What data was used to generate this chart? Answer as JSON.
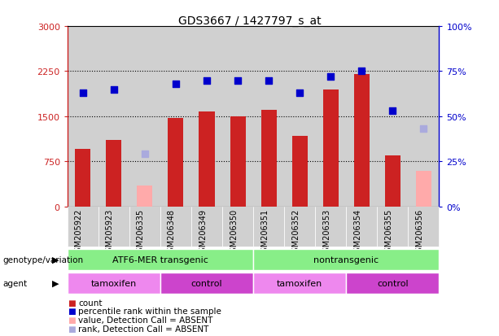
{
  "title": "GDS3667 / 1427797_s_at",
  "samples": [
    "GSM205922",
    "GSM205923",
    "GSM206335",
    "GSM206348",
    "GSM206349",
    "GSM206350",
    "GSM206351",
    "GSM206352",
    "GSM206353",
    "GSM206354",
    "GSM206355",
    "GSM206356"
  ],
  "count_values": [
    950,
    1100,
    null,
    1470,
    1580,
    1500,
    1600,
    1170,
    1950,
    2200,
    850,
    null
  ],
  "absent_count_values": [
    null,
    null,
    350,
    null,
    null,
    null,
    null,
    null,
    null,
    null,
    null,
    590
  ],
  "percentile_values": [
    63,
    65,
    null,
    68,
    70,
    70,
    70,
    63,
    72,
    75,
    53,
    null
  ],
  "absent_percentile_values": [
    null,
    null,
    29,
    null,
    null,
    null,
    null,
    null,
    null,
    null,
    null,
    43
  ],
  "ylim_left": [
    0,
    3000
  ],
  "ylim_right": [
    0,
    100
  ],
  "yticks_left": [
    0,
    750,
    1500,
    2250,
    3000
  ],
  "yticks_right": [
    0,
    25,
    50,
    75,
    100
  ],
  "ytick_labels_left": [
    "0",
    "750",
    "1500",
    "2250",
    "3000"
  ],
  "ytick_labels_right": [
    "0%",
    "25%",
    "50%",
    "75%",
    "100%"
  ],
  "bar_color_present": "#cc2222",
  "bar_color_absent": "#ffaaaa",
  "dot_color_present": "#0000cc",
  "dot_color_absent": "#aaaadd",
  "left_axis_color": "#cc2222",
  "right_axis_color": "#0000cc",
  "grid_color": "#000000",
  "background_plot": "#ffffff",
  "background_sample": "#d0d0d0",
  "groups": [
    {
      "label": "ATF6-MER transgenic",
      "color": "#88ee88",
      "start": 0,
      "end": 6
    },
    {
      "label": "nontransgenic",
      "color": "#88ee88",
      "start": 6,
      "end": 12
    }
  ],
  "agents": [
    {
      "label": "tamoxifen",
      "color": "#ee88ee",
      "start": 0,
      "end": 3
    },
    {
      "label": "control",
      "color": "#cc44cc",
      "start": 3,
      "end": 6
    },
    {
      "label": "tamoxifen",
      "color": "#ee88ee",
      "start": 6,
      "end": 9
    },
    {
      "label": "control",
      "color": "#cc44cc",
      "start": 9,
      "end": 12
    }
  ],
  "legend_items": [
    {
      "label": "count",
      "color": "#cc2222"
    },
    {
      "label": "percentile rank within the sample",
      "color": "#0000cc"
    },
    {
      "label": "value, Detection Call = ABSENT",
      "color": "#ffaaaa"
    },
    {
      "label": "rank, Detection Call = ABSENT",
      "color": "#aaaadd"
    }
  ],
  "genotype_label": "genotype/variation",
  "agent_label": "agent",
  "bar_width": 0.5
}
